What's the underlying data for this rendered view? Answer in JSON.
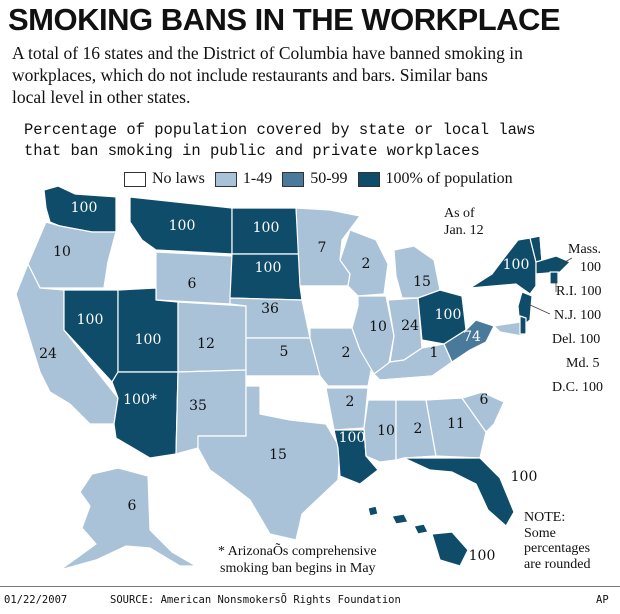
{
  "header": {
    "title": "SMOKING BANS IN THE WORKPLACE",
    "intro_lines": [
      "A total of 16 states and the District of Columbia have banned smoking in",
      "workplaces, which do not include restaurants and bars. Similar bans",
      "local level in other states."
    ]
  },
  "map": {
    "subtitle_lines": [
      "Percentage of population covered by state or local laws",
      "that ban smoking in public and private workplaces"
    ],
    "legend": [
      {
        "label": "No laws",
        "color": "#ffffff"
      },
      {
        "label": "1-49",
        "color": "#a9c2d8"
      },
      {
        "label": "50-99",
        "color": "#4a7a9b"
      },
      {
        "label": "100% of population",
        "color": "#0e4c6a"
      }
    ],
    "as_of": [
      "As of",
      "Jan. 12"
    ],
    "state_values": {
      "WA": "100",
      "OR": "10",
      "CA": "24",
      "NV": "100",
      "ID": "",
      "MT": "100",
      "WY": "6",
      "UT": "100",
      "AZ": "100*",
      "CO": "12",
      "NM": "35",
      "ND": "100",
      "SD": "100",
      "NE": "36",
      "KS": "5",
      "OK": "",
      "TX": "15",
      "MN": "7",
      "IA": "",
      "MO": "2",
      "AR": "2",
      "LA": "100",
      "WI": "2",
      "IL": "10",
      "IN": "24",
      "MI": "15",
      "OH": "100",
      "KY": "1",
      "TN": "",
      "MS": "10",
      "AL": "2",
      "GA": "11",
      "FL": "100",
      "SC": "6",
      "NC": "",
      "WV": "74",
      "VA": "",
      "PA": "",
      "NY": "100",
      "VT": "100",
      "NH": "",
      "ME": "",
      "AK": "6",
      "HI": "100"
    },
    "small_states": [
      {
        "name": "Mass.",
        "value": "100"
      },
      {
        "name": "R.I.",
        "value": "100"
      },
      {
        "name": "N.J.",
        "value": "100"
      },
      {
        "name": "Del.",
        "value": "100"
      },
      {
        "name": "Md.",
        "value": "5"
      },
      {
        "name": "D.C.",
        "value": "100"
      }
    ],
    "note": [
      "NOTE:",
      "Some",
      "percentages",
      "are rounded"
    ],
    "footnote": [
      "* ArizonaÕs comprehensive",
      "smoking ban begins in May"
    ]
  },
  "footer": {
    "date": "01/22/2007",
    "source": "SOURCE: American NonsmokersÕ Rights Foundation",
    "credit": "AP"
  }
}
